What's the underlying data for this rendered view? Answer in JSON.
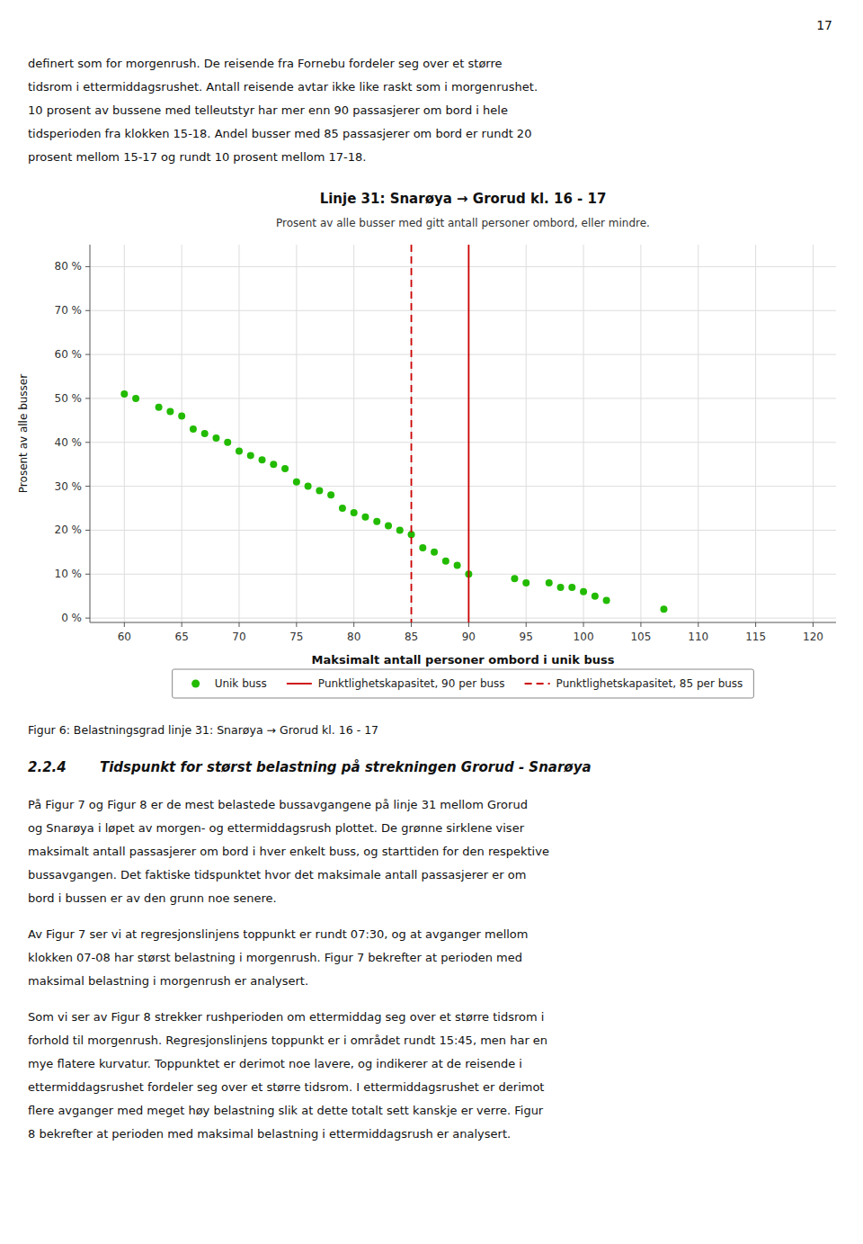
{
  "page_number": "17",
  "top_texts": [
    "definert som for morgenrush. De reisende fra Fornebu fordeler seg over et større",
    "tidsrom i ettermiddagsrushet. Antall reisende avtar ikke like raskt som i morgenrushet.",
    "10 prosent av bussene med telleutstyr har mer enn 90 passasjerer om bord i hele",
    "tidsperioden fra klokken 15-18. Andel busser med 85 passasjerer om bord er rundt 20",
    "prosent mellom 15-17 og rundt 10 prosent mellom 17-18."
  ],
  "chart_data": {
    "type": "scatter",
    "title": "Linje 31: Snarøya → Grorud kl. 16 - 17",
    "subtitle": "Prosent av alle busser med gitt antall personer ombord, eller mindre.",
    "x_label": "Maksimalt antall personer ombord i unik buss",
    "y_label": "Prosent av alle busser",
    "xlim": [
      57,
      122
    ],
    "ylim": [
      -1,
      85
    ],
    "xticks": [
      60,
      65,
      70,
      75,
      80,
      85,
      90,
      95,
      100,
      105,
      110,
      115,
      120
    ],
    "yticks": [
      {
        "value": 0,
        "label": "0 %"
      },
      {
        "value": 10,
        "label": "10 %"
      },
      {
        "value": 20,
        "label": "20 %"
      },
      {
        "value": 30,
        "label": "30 %"
      },
      {
        "value": 40,
        "label": "40 %"
      },
      {
        "value": 50,
        "label": "50 %"
      },
      {
        "value": 60,
        "label": "60 %"
      },
      {
        "value": 70,
        "label": "70 %"
      },
      {
        "value": 80,
        "label": "80 %"
      }
    ],
    "grid": true,
    "legend": "bottom",
    "series": [
      {
        "name": "Unik buss",
        "color": "#22BB00",
        "marker": "circle",
        "x": [
          60,
          61,
          63,
          64,
          65,
          66,
          67,
          68,
          69,
          70,
          71,
          72,
          73,
          74,
          75,
          76,
          77,
          78,
          79,
          80,
          81,
          82,
          83,
          84,
          85,
          86,
          87,
          88,
          89,
          90,
          94,
          95,
          97,
          98,
          99,
          100,
          101,
          102,
          107
        ],
        "values": [
          51,
          50,
          48,
          47,
          46,
          43,
          42,
          41,
          40,
          38,
          37,
          36,
          35,
          34,
          31,
          30,
          29,
          28,
          25,
          24,
          23,
          22,
          21,
          20,
          19,
          16,
          15,
          13,
          12,
          10,
          9,
          8,
          8,
          7,
          7,
          6,
          5,
          4,
          2
        ]
      }
    ],
    "vlines": [
      {
        "name": "Punktlighetskapasitet, 90 per buss",
        "x": 90,
        "color": "#CC0000",
        "line_style": "solid"
      },
      {
        "name": "Punktlighetskapasitet, 85 per buss",
        "x": 85,
        "color": "#CC0000",
        "line_style": "dashed"
      }
    ]
  },
  "fig_caption": "Figur 6: Belastningsgrad linje 31: Snarøya → Grorud kl. 16 - 17",
  "section_num": "2.2.4",
  "section_title": "Tidspunkt for størst belastning på strekningen Grorud - Snarøya",
  "body_paragraphs": [
    [
      "På Figur 7 og Figur 8 er de mest belastede bussavgangene på linje 31 mellom Grorud",
      "og Snarøya i løpet av morgen- og ettermiddagsrush plottet. De grønne sirklene viser",
      "maksimalt antall passasjerer om bord i hver enkelt buss, og starttiden for den respektive",
      "bussavgangen. Det faktiske tidspunktet hvor det maksimale antall passasjerer er om",
      "bord i bussen er av den grunn noe senere."
    ],
    [
      "Av Figur 7 ser vi at regresjonslinjens toppunkt er rundt 07:30, og at avganger mellom",
      "klokken 07-08 har størst belastning i morgenrush. Figur 7 bekrefter at perioden med",
      "maksimal belastning i morgenrush er analysert."
    ],
    [
      "Som vi ser av Figur 8 strekker rushperioden om ettermiddag seg over et større tidsrom i",
      "forhold til morgenrush. Regresjonslinjens toppunkt er i området rundt 15:45, men har en",
      "mye flatere kurvatur. Toppunktet er derimot noe lavere, og indikerer at de reisende i",
      "ettermiddagsrushet fordeler seg over et større tidsrom. I ettermiddagsrushet er derimot",
      "flere avganger med meget høy belastning slik at dette totalt sett kanskje er verre. Figur",
      "8 bekrefter at perioden med maksimal belastning i ettermiddagsrush er analysert."
    ]
  ]
}
